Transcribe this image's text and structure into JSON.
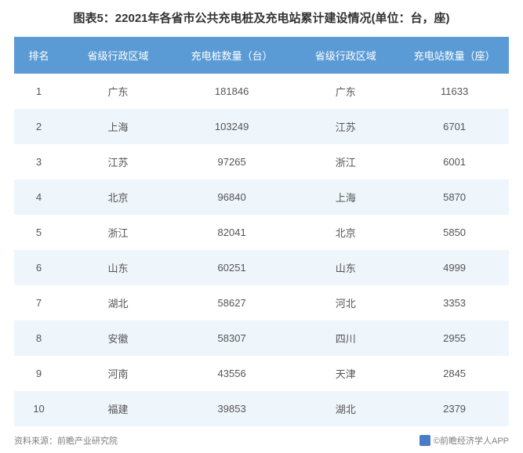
{
  "title": "图表5：22021年各省市公共充电桩及充电站累计建设情况(单位：台，座)",
  "columns": [
    "排名",
    "省级行政区域",
    "充电桩数量（台）",
    "省级行政区域",
    "充电站数量（座）"
  ],
  "rows": [
    [
      "1",
      "广东",
      "181846",
      "广东",
      "11633"
    ],
    [
      "2",
      "上海",
      "103249",
      "江苏",
      "6701"
    ],
    [
      "3",
      "江苏",
      "97265",
      "浙江",
      "6001"
    ],
    [
      "4",
      "北京",
      "96840",
      "上海",
      "5870"
    ],
    [
      "5",
      "浙江",
      "82041",
      "北京",
      "5850"
    ],
    [
      "6",
      "山东",
      "60251",
      "山东",
      "4999"
    ],
    [
      "7",
      "湖北",
      "58627",
      "河北",
      "3353"
    ],
    [
      "8",
      "安徽",
      "58307",
      "四川",
      "2955"
    ],
    [
      "9",
      "河南",
      "43556",
      "天津",
      "2845"
    ],
    [
      "10",
      "福建",
      "39853",
      "湖北",
      "2379"
    ]
  ],
  "source_label": "资料来源：前瞻产业研究院",
  "brand_label": "©前瞻经济学人APP",
  "styling": {
    "header_bg": "#5b9bd5",
    "header_fg": "#ffffff",
    "row_odd_bg": "#ffffff",
    "row_even_bg": "#eef5fb",
    "cell_fg": "#555555",
    "title_fg": "#333333",
    "footer_fg": "#808080",
    "title_fontsize": 15,
    "header_fontsize": 13,
    "cell_fontsize": 13,
    "footer_fontsize": 11
  }
}
